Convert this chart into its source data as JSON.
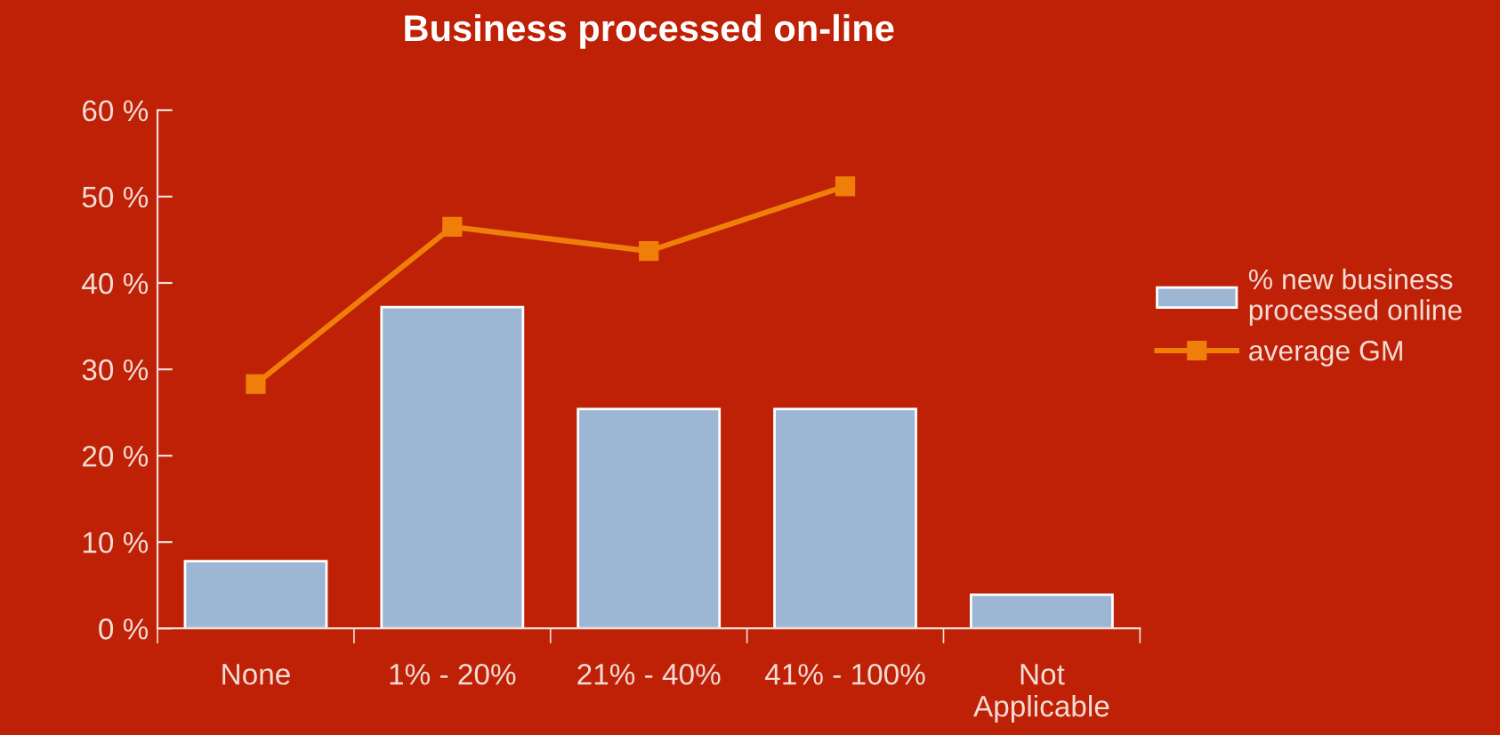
{
  "chart_data": {
    "type": "bar",
    "title": "Business processed on-line",
    "categories": [
      "None",
      "1% - 20%",
      "21% - 40%",
      "41% - 100%",
      "Not\nApplicable"
    ],
    "series": [
      {
        "name": "% new business\nprocessed online",
        "color": "#9cb6d3",
        "values": [
          7.8,
          37.2,
          25.4,
          25.4,
          3.9
        ]
      },
      {
        "name": "average GM",
        "type": "line",
        "color": "#f07f09",
        "values": [
          28.3,
          46.5,
          43.7,
          51.2,
          null
        ],
        "marker": "square"
      }
    ],
    "ylim": [
      0,
      60
    ],
    "yticks": [
      {
        "value": 0,
        "label": "0 %"
      },
      {
        "value": 10,
        "label": "10 %"
      },
      {
        "value": 20,
        "label": "20 %"
      },
      {
        "value": 30,
        "label": "30 %"
      },
      {
        "value": 40,
        "label": "40 %"
      },
      {
        "value": 50,
        "label": "50 %"
      },
      {
        "value": 60,
        "label": "60 %"
      }
    ],
    "grid": false,
    "legend": "right"
  }
}
